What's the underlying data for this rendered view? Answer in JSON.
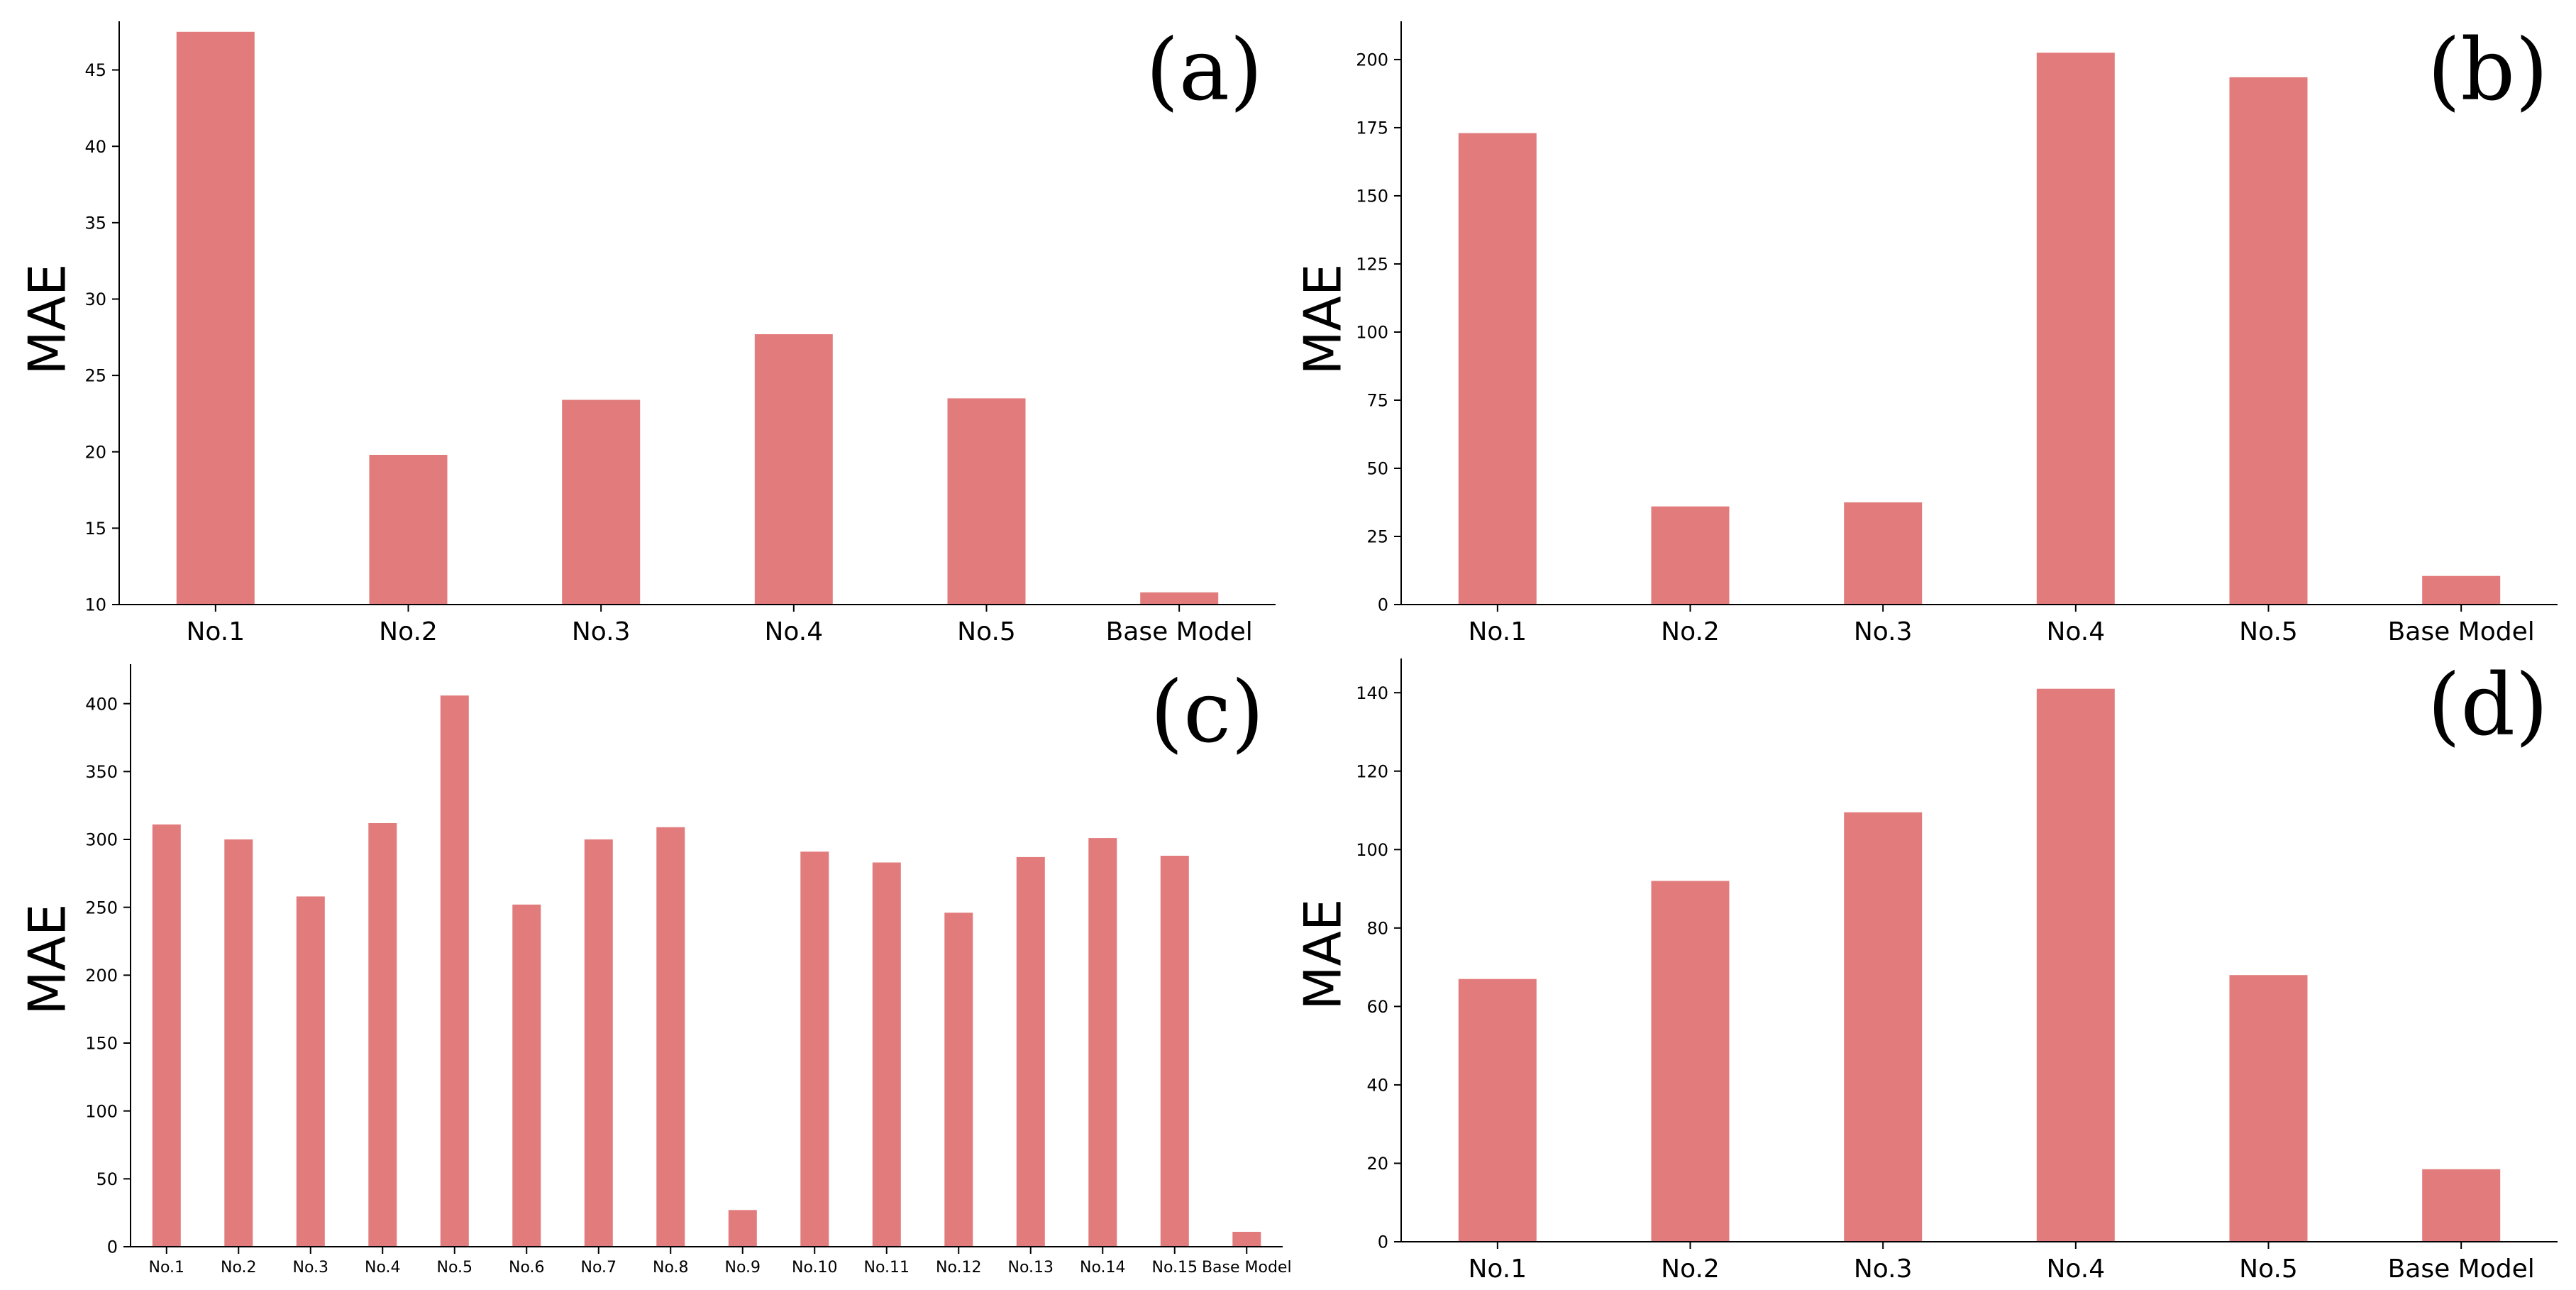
{
  "colors": {
    "bar": "#e27b7b",
    "axis": "#000000",
    "background": "#ffffff"
  },
  "chart_data": [
    {
      "panel": "(a)",
      "type": "bar",
      "title": "",
      "xlabel": "",
      "ylabel": "MAE",
      "categories": [
        "No.1",
        "No.2",
        "No.3",
        "No.4",
        "No.5",
        "Base Model"
      ],
      "values": [
        47.5,
        19.8,
        23.4,
        27.7,
        23.5,
        10.8
      ],
      "ylim": [
        10,
        48
      ],
      "yticks": [
        10,
        15,
        20,
        25,
        30,
        35,
        40,
        45
      ],
      "grid": false,
      "legend": null
    },
    {
      "panel": "(b)",
      "type": "bar",
      "title": "",
      "xlabel": "",
      "ylabel": "MAE",
      "categories": [
        "No.1",
        "No.2",
        "No.3",
        "No.4",
        "No.5",
        "Base Model"
      ],
      "values": [
        173,
        36,
        37.5,
        202.5,
        193.5,
        10.5
      ],
      "ylim": [
        0,
        213
      ],
      "yticks": [
        0,
        25,
        50,
        75,
        100,
        125,
        150,
        175,
        200
      ],
      "grid": false,
      "legend": null
    },
    {
      "panel": "(c)",
      "type": "bar",
      "title": "",
      "xlabel": "",
      "ylabel": "MAE",
      "categories": [
        "No.1",
        "No.2",
        "No.3",
        "No.4",
        "No.5",
        "No.6",
        "No.7",
        "No.8",
        "No.9",
        "No.10",
        "No.11",
        "No.12",
        "No.13",
        "No.14",
        "No.15",
        "Base Model"
      ],
      "values": [
        311,
        300,
        258,
        312,
        406,
        252,
        300,
        309,
        27,
        291,
        283,
        246,
        287,
        301,
        288,
        11
      ],
      "ylim": [
        0,
        427
      ],
      "yticks": [
        0,
        50,
        100,
        150,
        200,
        250,
        300,
        350,
        400
      ],
      "grid": false,
      "legend": null
    },
    {
      "panel": "(d)",
      "type": "bar",
      "title": "",
      "xlabel": "",
      "ylabel": "MAE",
      "categories": [
        "No.1",
        "No.2",
        "No.3",
        "No.4",
        "No.5",
        "Base Model"
      ],
      "values": [
        67,
        92,
        109.5,
        141,
        68,
        18.5
      ],
      "ylim": [
        0,
        148
      ],
      "yticks": [
        0,
        20,
        40,
        60,
        80,
        100,
        120,
        140
      ],
      "grid": false,
      "legend": null
    }
  ]
}
